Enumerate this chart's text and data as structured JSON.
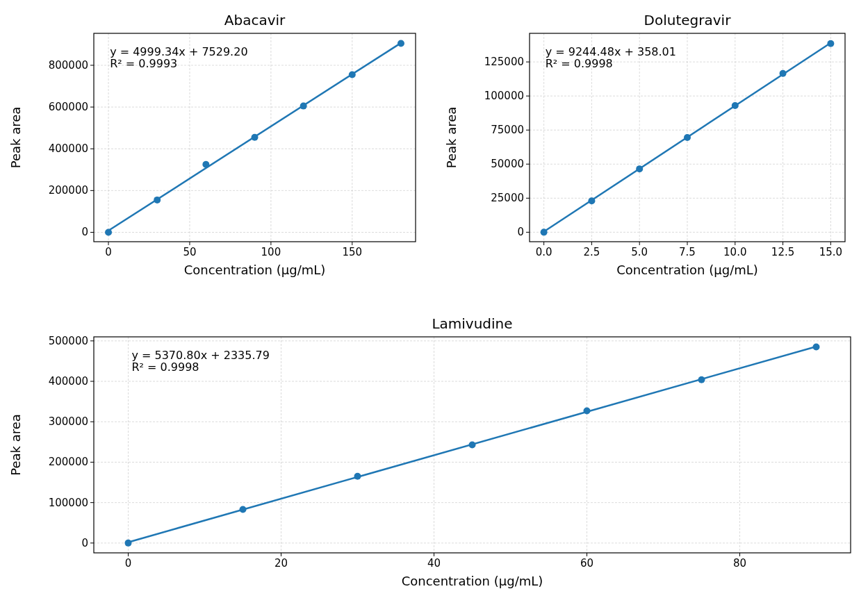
{
  "chart_data": [
    {
      "type": "scatter",
      "title": "Abacavir",
      "xlabel": "Concentration (µg/mL)",
      "ylabel": "Peak area",
      "xlim": [
        -9,
        189
      ],
      "ylim": [
        -45000,
        953000
      ],
      "xticks": [
        0,
        50,
        100,
        150
      ],
      "yticks": [
        0,
        200000,
        400000,
        600000,
        800000
      ],
      "grid": true,
      "annotations": [
        "y = 4999.34x + 7529.20",
        "R² = 0.9993"
      ],
      "series": [
        {
          "marker": "circle",
          "color": "#1f77b4",
          "x": [
            0,
            30,
            60,
            90,
            120,
            150,
            180
          ],
          "values": [
            0,
            155000,
            325000,
            455000,
            605000,
            755000,
            905000
          ]
        },
        {
          "type": "line",
          "color": "#1f77b4",
          "x": [
            0,
            180
          ],
          "values": [
            8000,
            907000
          ]
        }
      ]
    },
    {
      "type": "scatter",
      "title": "Dolutegravir",
      "xlabel": "Concentration (µg/mL)",
      "ylabel": "Peak area",
      "xlim": [
        -0.75,
        15.75
      ],
      "ylim": [
        -6950,
        145975
      ],
      "xticks": [
        {
          "value": 0,
          "label": "0.0"
        },
        {
          "value": 2.5,
          "label": "2.5"
        },
        {
          "value": 5,
          "label": "5.0"
        },
        {
          "value": 7.5,
          "label": "7.5"
        },
        {
          "value": 10,
          "label": "10.0"
        },
        {
          "value": 12.5,
          "label": "12.5"
        },
        {
          "value": 15,
          "label": "15.0"
        }
      ],
      "yticks": [
        0,
        25000,
        50000,
        75000,
        100000,
        125000
      ],
      "grid": true,
      "annotations": [
        "y = 9244.48x + 358.01",
        "R² = 0.9998"
      ],
      "series": [
        {
          "marker": "circle",
          "color": "#1f77b4",
          "x": [
            0,
            2.5,
            5,
            7.5,
            10,
            12.5,
            15
          ],
          "values": [
            0,
            23000,
            46500,
            69500,
            93000,
            116500,
            138500
          ]
        },
        {
          "type": "line",
          "color": "#1f77b4",
          "x": [
            0,
            15
          ],
          "values": [
            400,
            139000
          ]
        }
      ]
    },
    {
      "type": "scatter",
      "title": "Lamivudine",
      "xlabel": "Concentration (µg/mL)",
      "ylabel": "Peak area",
      "xlim": [
        -4.5,
        94.5
      ],
      "ylim": [
        -24300,
        510000
      ],
      "xticks": [
        0,
        20,
        40,
        60,
        80
      ],
      "yticks": [
        0,
        100000,
        200000,
        300000,
        400000,
        500000
      ],
      "grid": true,
      "annotations": [
        "y = 5370.80x + 2335.79",
        "R² = 0.9998"
      ],
      "series": [
        {
          "marker": "circle",
          "color": "#1f77b4",
          "x": [
            0,
            15,
            30,
            45,
            60,
            75,
            90
          ],
          "values": [
            0,
            83000,
            165000,
            243000,
            327000,
            404000,
            485000
          ]
        },
        {
          "type": "line",
          "color": "#1f77b4",
          "x": [
            0,
            90
          ],
          "values": [
            2000,
            486000
          ]
        }
      ]
    }
  ]
}
